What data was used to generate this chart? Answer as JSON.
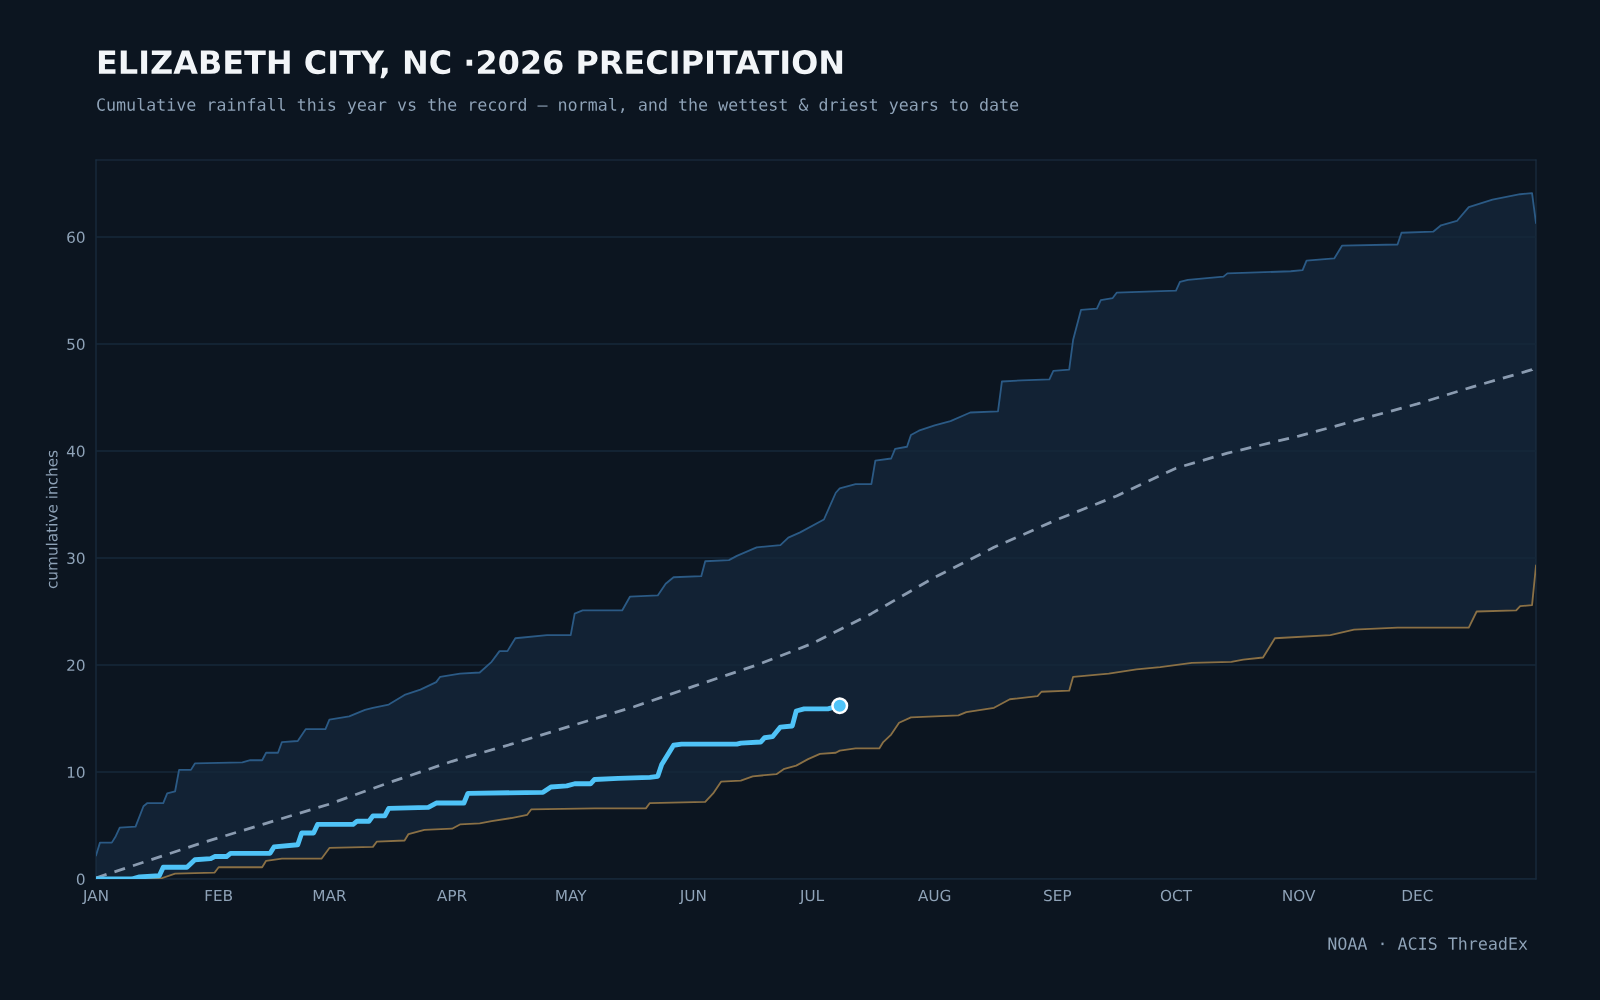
{
  "chart_data": {
    "type": "line",
    "title": "ELIZABETH CITY, NC ·2026 PRECIPITATION",
    "subtitle": "Cumulative rainfall this year vs the record — normal, and the wettest & driest years to date",
    "ylabel": "cumulative inches",
    "annotations": [
      "NOAA · ACIS ThreadEx"
    ],
    "xlim": [
      "2026-01-01",
      "2026-12-31"
    ],
    "ylim": [
      0,
      67.2
    ],
    "yticks": [
      0,
      10,
      20,
      30,
      40,
      50,
      60
    ],
    "xticks": [
      {
        "value": "2026-01-01",
        "label": "JAN"
      },
      {
        "value": "2026-02-01",
        "label": "FEB"
      },
      {
        "value": "2026-03-01",
        "label": "MAR"
      },
      {
        "value": "2026-04-01",
        "label": "APR"
      },
      {
        "value": "2026-05-01",
        "label": "MAY"
      },
      {
        "value": "2026-06-01",
        "label": "JUN"
      },
      {
        "value": "2026-07-01",
        "label": "JUL"
      },
      {
        "value": "2026-08-01",
        "label": "AUG"
      },
      {
        "value": "2026-09-01",
        "label": "SEP"
      },
      {
        "value": "2026-10-01",
        "label": "OCT"
      },
      {
        "value": "2026-11-01",
        "label": "NOV"
      },
      {
        "value": "2026-12-01",
        "label": "DEC"
      }
    ],
    "grid": "y",
    "legend": false,
    "series": [
      {
        "type": "area",
        "color": "#2b5a85",
        "line_style": "solid",
        "x": [
          "2026-01-01",
          "2026-01-02",
          "2026-01-05",
          "2026-01-06",
          "2026-01-07",
          "2026-01-11",
          "2026-01-13",
          "2026-01-14",
          "2026-01-18",
          "2026-01-19",
          "2026-01-21",
          "2026-01-22",
          "2026-01-25",
          "2026-01-26",
          "2026-02-07",
          "2026-02-09",
          "2026-02-12",
          "2026-02-13",
          "2026-02-16",
          "2026-02-17",
          "2026-02-21",
          "2026-02-23",
          "2026-02-28",
          "2026-03-01",
          "2026-03-06",
          "2026-03-10",
          "2026-03-12",
          "2026-03-16",
          "2026-03-20",
          "2026-03-24",
          "2026-03-28",
          "2026-03-29",
          "2026-04-03",
          "2026-04-08",
          "2026-04-11",
          "2026-04-13",
          "2026-04-15",
          "2026-04-17",
          "2026-04-25",
          "2026-05-01",
          "2026-05-02",
          "2026-05-04",
          "2026-05-14",
          "2026-05-16",
          "2026-05-23",
          "2026-05-25",
          "2026-05-27",
          "2026-06-03",
          "2026-06-04",
          "2026-06-10",
          "2026-06-12",
          "2026-06-17",
          "2026-06-23",
          "2026-06-25",
          "2026-06-28",
          "2026-07-04",
          "2026-07-07",
          "2026-07-08",
          "2026-07-12",
          "2026-07-16",
          "2026-07-17",
          "2026-07-21",
          "2026-07-22",
          "2026-07-25",
          "2026-07-26",
          "2026-07-28",
          "2026-08-01",
          "2026-08-05",
          "2026-08-10",
          "2026-08-17",
          "2026-08-18",
          "2026-08-23",
          "2026-08-30",
          "2026-08-31",
          "2026-09-04",
          "2026-09-05",
          "2026-09-07",
          "2026-09-11",
          "2026-09-12",
          "2026-09-15",
          "2026-09-16",
          "2026-10-01",
          "2026-10-02",
          "2026-10-04",
          "2026-10-13",
          "2026-10-14",
          "2026-10-30",
          "2026-11-02",
          "2026-11-03",
          "2026-11-10",
          "2026-11-12",
          "2026-11-26",
          "2026-11-27",
          "2026-12-05",
          "2026-12-07",
          "2026-12-11",
          "2026-12-14",
          "2026-12-20",
          "2026-12-27",
          "2026-12-30",
          "2026-12-31"
        ],
        "values": [
          2.2,
          3.4,
          3.4,
          4.0,
          4.8,
          4.9,
          6.8,
          7.1,
          7.1,
          8.0,
          8.2,
          10.2,
          10.2,
          10.8,
          10.9,
          11.1,
          11.1,
          11.8,
          11.8,
          12.8,
          12.9,
          14.0,
          14.0,
          14.9,
          15.2,
          15.8,
          16.0,
          16.3,
          17.2,
          17.7,
          18.4,
          18.9,
          19.2,
          19.3,
          20.3,
          21.3,
          21.3,
          22.5,
          22.8,
          22.8,
          24.8,
          25.1,
          25.1,
          26.4,
          26.5,
          27.6,
          28.2,
          28.3,
          29.7,
          29.8,
          30.2,
          31.0,
          31.2,
          31.9,
          32.4,
          33.6,
          36.1,
          36.5,
          36.9,
          36.9,
          39.1,
          39.3,
          40.2,
          40.4,
          41.5,
          41.9,
          42.4,
          42.8,
          43.6,
          43.7,
          46.5,
          46.6,
          46.7,
          47.5,
          47.6,
          50.4,
          53.2,
          53.3,
          54.1,
          54.3,
          54.8,
          55.0,
          55.8,
          56.0,
          56.3,
          56.6,
          56.8,
          56.9,
          57.8,
          58.0,
          59.2,
          59.3,
          60.4,
          60.5,
          61.1,
          61.5,
          62.8,
          63.5,
          64.0,
          64.1,
          61.3
        ]
      },
      {
        "color": "#8a7045",
        "line_style": "solid",
        "x": [
          "2026-01-01",
          "2026-01-17",
          "2026-01-21",
          "2026-01-31",
          "2026-02-01",
          "2026-02-12",
          "2026-02-13",
          "2026-02-17",
          "2026-02-27",
          "2026-03-01",
          "2026-03-12",
          "2026-03-13",
          "2026-03-20",
          "2026-03-21",
          "2026-03-25",
          "2026-04-01",
          "2026-04-03",
          "2026-04-08",
          "2026-04-11",
          "2026-04-16",
          "2026-04-20",
          "2026-04-21",
          "2026-05-07",
          "2026-05-20",
          "2026-05-21",
          "2026-06-04",
          "2026-06-06",
          "2026-06-08",
          "2026-06-13",
          "2026-06-16",
          "2026-06-22",
          "2026-06-24",
          "2026-06-27",
          "2026-06-30",
          "2026-07-03",
          "2026-07-07",
          "2026-07-08",
          "2026-07-12",
          "2026-07-18",
          "2026-07-19",
          "2026-07-21",
          "2026-07-23",
          "2026-07-26",
          "2026-08-07",
          "2026-08-09",
          "2026-08-16",
          "2026-08-20",
          "2026-08-27",
          "2026-08-28",
          "2026-09-04",
          "2026-09-05",
          "2026-09-14",
          "2026-09-21",
          "2026-09-27",
          "2026-10-05",
          "2026-10-15",
          "2026-10-18",
          "2026-10-23",
          "2026-10-26",
          "2026-11-09",
          "2026-11-15",
          "2026-11-26",
          "2026-12-14",
          "2026-12-16",
          "2026-12-26",
          "2026-12-27",
          "2026-12-30",
          "2026-12-31"
        ],
        "values": [
          0,
          0,
          0.5,
          0.6,
          1.1,
          1.1,
          1.7,
          1.9,
          1.9,
          2.9,
          3.0,
          3.5,
          3.6,
          4.2,
          4.6,
          4.7,
          5.1,
          5.2,
          5.4,
          5.7,
          6.0,
          6.5,
          6.6,
          6.6,
          7.1,
          7.2,
          8.0,
          9.1,
          9.2,
          9.6,
          9.8,
          10.3,
          10.6,
          11.2,
          11.7,
          11.8,
          12.0,
          12.2,
          12.2,
          12.8,
          13.5,
          14.6,
          15.1,
          15.3,
          15.6,
          16.0,
          16.8,
          17.1,
          17.5,
          17.6,
          18.9,
          19.2,
          19.6,
          19.8,
          20.2,
          20.3,
          20.5,
          20.7,
          22.5,
          22.8,
          23.3,
          23.5,
          23.5,
          25.0,
          25.1,
          25.5,
          25.6,
          29.3
        ]
      },
      {
        "color": "#8a9bb0",
        "line_style": "dashed",
        "x": [
          "2026-01-01",
          "2026-01-28",
          "2026-02-13",
          "2026-03-01",
          "2026-03-16",
          "2026-04-01",
          "2026-04-16",
          "2026-05-01",
          "2026-05-17",
          "2026-06-01",
          "2026-06-17",
          "2026-07-01",
          "2026-07-16",
          "2026-08-01",
          "2026-08-16",
          "2026-09-01",
          "2026-09-16",
          "2026-10-01",
          "2026-10-14",
          "2026-11-01",
          "2026-11-17",
          "2026-12-01",
          "2026-12-15",
          "2026-12-30",
          "2026-12-31"
        ],
        "values": [
          0.1,
          3.4,
          5.2,
          7.0,
          9.0,
          11.0,
          12.6,
          14.3,
          16.1,
          18.0,
          20.0,
          22.0,
          24.8,
          28.2,
          31.0,
          33.6,
          35.8,
          38.4,
          39.8,
          41.4,
          43.0,
          44.4,
          46.0,
          47.6,
          48.3
        ]
      },
      {
        "color": "#4fc3f7",
        "line_style": "solid",
        "x": [
          "2026-01-01",
          "2026-01-10",
          "2026-01-12",
          "2026-01-17",
          "2026-01-18",
          "2026-01-24",
          "2026-01-26",
          "2026-01-30",
          "2026-01-31",
          "2026-02-03",
          "2026-02-04",
          "2026-02-14",
          "2026-02-15",
          "2026-02-21",
          "2026-02-22",
          "2026-02-25",
          "2026-02-26",
          "2026-03-07",
          "2026-03-08",
          "2026-03-11",
          "2026-03-12",
          "2026-03-15",
          "2026-03-16",
          "2026-03-26",
          "2026-03-28",
          "2026-04-04",
          "2026-04-05",
          "2026-04-24",
          "2026-04-26",
          "2026-04-30",
          "2026-05-02",
          "2026-05-06",
          "2026-05-07",
          "2026-05-13",
          "2026-05-21",
          "2026-05-23",
          "2026-05-24",
          "2026-05-27",
          "2026-05-29",
          "2026-06-12",
          "2026-06-13",
          "2026-06-18",
          "2026-06-19",
          "2026-06-21",
          "2026-06-23",
          "2026-06-26",
          "2026-06-27",
          "2026-06-29",
          "2026-07-05",
          "2026-07-08"
        ],
        "values": [
          0,
          0,
          0.2,
          0.3,
          1.1,
          1.1,
          1.8,
          1.9,
          2.1,
          2.1,
          2.4,
          2.4,
          3.0,
          3.2,
          4.3,
          4.3,
          5.1,
          5.1,
          5.4,
          5.4,
          5.9,
          5.9,
          6.6,
          6.7,
          7.1,
          7.1,
          8.0,
          8.1,
          8.6,
          8.7,
          8.9,
          8.9,
          9.3,
          9.4,
          9.5,
          9.6,
          10.7,
          12.5,
          12.6,
          12.6,
          12.7,
          12.8,
          13.2,
          13.3,
          14.2,
          14.3,
          15.7,
          15.9,
          15.9,
          16.2
        ]
      },
      {
        "type": "scatter",
        "color": "#4fc3f7",
        "x": [
          "2026-07-08"
        ],
        "values": [
          16.2
        ]
      }
    ]
  }
}
